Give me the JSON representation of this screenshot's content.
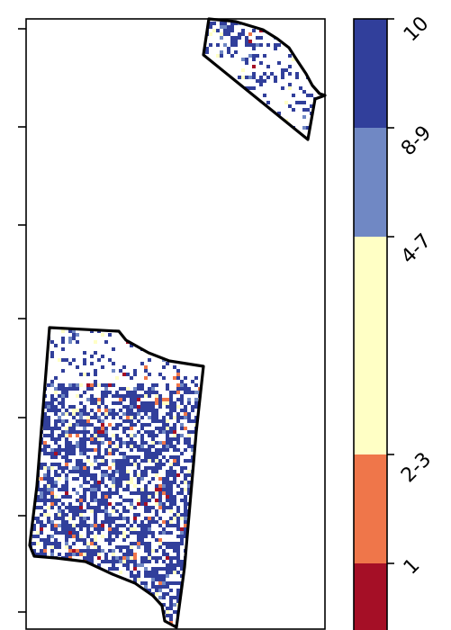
{
  "legend": {
    "labels": [
      "10",
      "8-9",
      "4-7",
      "2-3",
      "1"
    ],
    "colors": {
      "10": "#313f9b",
      "8-9": "#7088c4",
      "4-7": "#ffffc5",
      "2-3": "#ef764a",
      "1": "#a50f26"
    }
  },
  "map": {
    "regions": [
      {
        "name": "north-east-region",
        "dominant_class": "10"
      },
      {
        "name": "south-west-region",
        "dominant_class": "10"
      }
    ],
    "boundary_color": "#000000"
  }
}
